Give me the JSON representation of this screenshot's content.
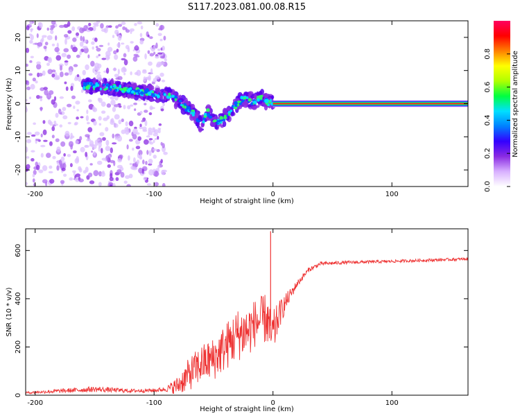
{
  "title": "S117.2023.081.00.08.R15",
  "chart_data": [
    {
      "type": "heatmap",
      "panel": "top",
      "xlabel": "Height of straight line (km)",
      "ylabel": "Frequency (Hz)",
      "xlim": [
        -208,
        164
      ],
      "ylim": [
        -25,
        25
      ],
      "x_ticks": [
        -200,
        -100,
        0,
        100
      ],
      "y_ticks": [
        -20,
        -10,
        0,
        10,
        20
      ],
      "grid": false,
      "colorbar": {
        "label": "Normalized spectral amplitude",
        "range": [
          0,
          1
        ],
        "ticks": [
          "0.0",
          "0.2",
          "0.4",
          "0.6",
          "0.8"
        ],
        "colors": [
          "#ffffff",
          "#d8b0ff",
          "#8a2be2",
          "#3300ff",
          "#0080ff",
          "#00e0ff",
          "#00ff40",
          "#b0ff00",
          "#ffff00",
          "#ff8000",
          "#ff0000",
          "#ff0060"
        ]
      },
      "ridge": {
        "x": [
          -160,
          -140,
          -120,
          -100,
          -88,
          -80,
          -72,
          -65,
          -60,
          -55,
          -50,
          -45,
          -40,
          -35,
          -30,
          -25,
          -20,
          -15,
          -10,
          -5,
          0,
          50,
          100,
          164
        ],
        "freq": [
          5.5,
          5,
          4,
          3,
          2.5,
          1,
          -1.5,
          -3.5,
          -7,
          -2.5,
          -5,
          -5.5,
          -4,
          -2,
          0,
          1.5,
          1,
          0.5,
          2,
          0.5,
          0,
          0,
          0,
          0
        ]
      },
      "scatter_region": {
        "x_range": [
          -208,
          -90
        ],
        "freq_range": [
          -25,
          25
        ]
      },
      "stable_line": {
        "x_range": [
          0,
          164
        ],
        "freq": 0
      }
    },
    {
      "type": "line",
      "panel": "bottom",
      "xlabel": "Height of straight line (km)",
      "ylabel": "SNR (10 * v/v)",
      "xlim": [
        -208,
        164
      ],
      "ylim": [
        0,
        690
      ],
      "x_ticks": [
        -200,
        -100,
        0,
        100
      ],
      "y_ticks": [
        0,
        200,
        400,
        600
      ],
      "grid": false,
      "color": "#ee3333",
      "series": [
        {
          "x": [
            -208,
            -150,
            -120,
            -100,
            -90,
            -80,
            -70,
            -60,
            -50,
            -40,
            -30,
            -20,
            -15,
            -10,
            -5,
            -2,
            0,
            5,
            10,
            15,
            20,
            30,
            40,
            60,
            100,
            164
          ],
          "y": [
            10,
            25,
            18,
            20,
            25,
            40,
            90,
            130,
            150,
            200,
            250,
            270,
            300,
            310,
            320,
            250,
            250,
            330,
            380,
            420,
            460,
            520,
            545,
            550,
            555,
            565
          ],
          "noise": [
            5,
            12,
            8,
            8,
            10,
            40,
            70,
            80,
            90,
            100,
            110,
            110,
            100,
            100,
            110,
            100,
            100,
            60,
            40,
            25,
            15,
            10,
            8,
            7,
            6,
            6
          ]
        }
      ],
      "spike": {
        "x": -2,
        "y": 680
      }
    }
  ]
}
